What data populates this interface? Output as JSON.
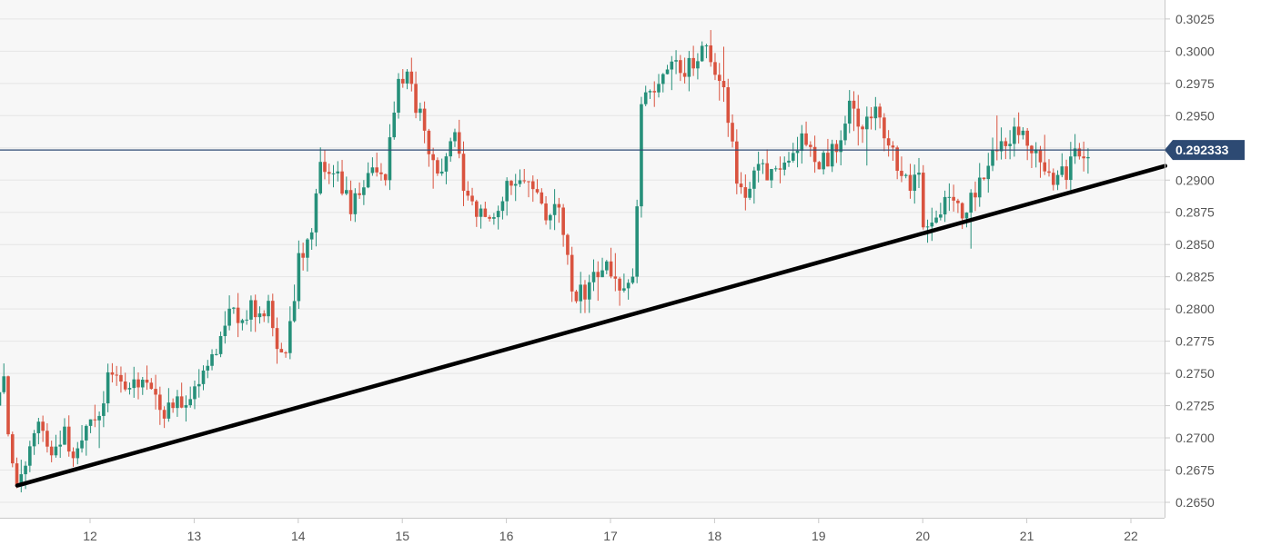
{
  "chart_data": {
    "type": "candlestick",
    "title": "",
    "xlabel": "",
    "ylabel": "",
    "x_ticks": [
      "12",
      "13",
      "14",
      "15",
      "16",
      "17",
      "18",
      "19",
      "20",
      "21",
      "22"
    ],
    "y_ticks": [
      "0.2650",
      "0.2675",
      "0.2700",
      "0.2725",
      "0.2750",
      "0.2775",
      "0.2800",
      "0.2825",
      "0.2850",
      "0.2875",
      "0.2900",
      "0.2925",
      "0.2950",
      "0.2975",
      "0.3000",
      "0.3025"
    ],
    "xlim": [
      11.13,
      22.33
    ],
    "ylim": [
      0.2638,
      0.3043
    ],
    "grid": true,
    "current_price": {
      "value": 0.292333,
      "label": "0.292333"
    },
    "trendline": {
      "start": {
        "x": 11.3,
        "y": 0.2663
      },
      "end": {
        "x": 22.33,
        "y": 0.2911
      }
    },
    "colors": {
      "up": "#26907a",
      "down": "#d9533f",
      "price_line": "#2d4a73",
      "price_badge": "#2d4a73",
      "trendline": "#000000",
      "grid": "#e6e6e6",
      "plot_background": "#f7f7f7"
    },
    "anchors": [
      [
        11.13,
        0.2725
      ],
      [
        11.2,
        0.2755
      ],
      [
        11.28,
        0.2685
      ],
      [
        11.36,
        0.266
      ],
      [
        11.45,
        0.2695
      ],
      [
        11.55,
        0.2715
      ],
      [
        11.68,
        0.269
      ],
      [
        11.78,
        0.2705
      ],
      [
        11.9,
        0.268
      ],
      [
        12.05,
        0.2715
      ],
      [
        12.15,
        0.2725
      ],
      [
        12.27,
        0.276
      ],
      [
        12.37,
        0.2735
      ],
      [
        12.47,
        0.2745
      ],
      [
        12.6,
        0.2735
      ],
      [
        12.75,
        0.272
      ],
      [
        12.9,
        0.2725
      ],
      [
        13.05,
        0.274
      ],
      [
        13.2,
        0.2755
      ],
      [
        13.32,
        0.279
      ],
      [
        13.45,
        0.2795
      ],
      [
        13.6,
        0.28
      ],
      [
        13.75,
        0.28
      ],
      [
        13.85,
        0.277
      ],
      [
        13.95,
        0.2775
      ],
      [
        14.05,
        0.284
      ],
      [
        14.15,
        0.285
      ],
      [
        14.25,
        0.291
      ],
      [
        14.35,
        0.2905
      ],
      [
        14.45,
        0.29
      ],
      [
        14.55,
        0.288
      ],
      [
        14.65,
        0.29
      ],
      [
        14.78,
        0.291
      ],
      [
        14.88,
        0.29
      ],
      [
        14.95,
        0.295
      ],
      [
        15.0,
        0.2975
      ],
      [
        15.07,
        0.298
      ],
      [
        15.15,
        0.2965
      ],
      [
        15.25,
        0.294
      ],
      [
        15.35,
        0.2905
      ],
      [
        15.45,
        0.2915
      ],
      [
        15.55,
        0.2935
      ],
      [
        15.65,
        0.289
      ],
      [
        15.75,
        0.2875
      ],
      [
        15.85,
        0.2865
      ],
      [
        15.95,
        0.288
      ],
      [
        16.05,
        0.29
      ],
      [
        16.18,
        0.2895
      ],
      [
        16.3,
        0.289
      ],
      [
        16.42,
        0.2875
      ],
      [
        16.52,
        0.2885
      ],
      [
        16.6,
        0.2855
      ],
      [
        16.68,
        0.2815
      ],
      [
        16.78,
        0.281
      ],
      [
        16.88,
        0.2825
      ],
      [
        17.0,
        0.2835
      ],
      [
        17.1,
        0.2825
      ],
      [
        17.2,
        0.281
      ],
      [
        17.28,
        0.2835
      ],
      [
        17.33,
        0.296
      ],
      [
        17.45,
        0.297
      ],
      [
        17.55,
        0.2975
      ],
      [
        17.65,
        0.299
      ],
      [
        17.75,
        0.2985
      ],
      [
        17.85,
        0.2995
      ],
      [
        17.95,
        0.301
      ],
      [
        18.05,
        0.2985
      ],
      [
        18.15,
        0.296
      ],
      [
        18.25,
        0.29
      ],
      [
        18.35,
        0.2885
      ],
      [
        18.45,
        0.291
      ],
      [
        18.55,
        0.2905
      ],
      [
        18.65,
        0.291
      ],
      [
        18.75,
        0.2915
      ],
      [
        18.85,
        0.293
      ],
      [
        18.95,
        0.2925
      ],
      [
        19.05,
        0.291
      ],
      [
        19.15,
        0.292
      ],
      [
        19.25,
        0.2925
      ],
      [
        19.35,
        0.296
      ],
      [
        19.45,
        0.2945
      ],
      [
        19.55,
        0.2955
      ],
      [
        19.65,
        0.2945
      ],
      [
        19.75,
        0.292
      ],
      [
        19.85,
        0.2895
      ],
      [
        19.95,
        0.29
      ],
      [
        20.0,
        0.291
      ],
      [
        20.05,
        0.2865
      ],
      [
        20.15,
        0.287
      ],
      [
        20.25,
        0.2885
      ],
      [
        20.35,
        0.288
      ],
      [
        20.45,
        0.2875
      ],
      [
        20.55,
        0.289
      ],
      [
        20.65,
        0.291
      ],
      [
        20.75,
        0.293
      ],
      [
        20.85,
        0.2925
      ],
      [
        20.95,
        0.294
      ],
      [
        21.05,
        0.293
      ],
      [
        21.15,
        0.2925
      ],
      [
        21.25,
        0.2905
      ],
      [
        21.35,
        0.29
      ],
      [
        21.45,
        0.291
      ],
      [
        21.52,
        0.292
      ],
      [
        21.6,
        0.2923
      ]
    ]
  }
}
